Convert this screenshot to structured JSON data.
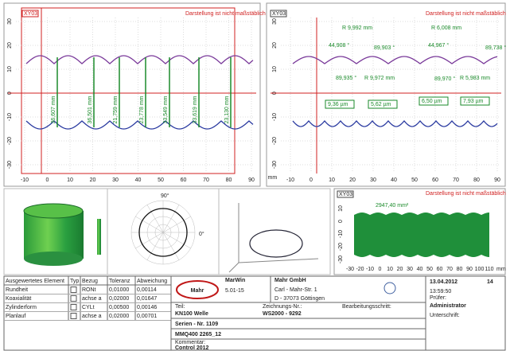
{
  "left_plot": {
    "tag": "XY03",
    "note": "Darstellung ist nicht maßstäblich",
    "xticks": [
      -10,
      0,
      10,
      20,
      30,
      40,
      50,
      60,
      70,
      80,
      90
    ],
    "xunit": "mm",
    "yticks": [
      30,
      20,
      10,
      0,
      -10,
      -20,
      -30
    ],
    "dimensions": [
      "36,607 mm",
      "36,501 mm",
      "21,759 mm",
      "23,778 mm",
      "33,549 mm",
      "33,619 mm",
      "23,130 mm"
    ]
  },
  "right_plot": {
    "tag": "XY03",
    "note": "Darstellung ist nicht maßstäblich",
    "xticks": [
      -10,
      0,
      10,
      20,
      30,
      40,
      50,
      60,
      70,
      80,
      90
    ],
    "xunit": "mm",
    "yticks": [
      30,
      20,
      10,
      0,
      -10,
      -20,
      -30
    ],
    "annotations": [
      "R 9,992 mm",
      "44,908 °",
      "89,935 °",
      "R 9,972 mm",
      "R 6,008 mm",
      "44,967 °",
      "89,903 °",
      "89,970 °",
      "R 5,983 mm",
      "89,738 °",
      "9,36 µm",
      "5,62 µm",
      "6,50 µm",
      "7,93 µm"
    ]
  },
  "panels": {
    "polar_top": "90°",
    "polar_right": "0°",
    "area_tag": "XY03",
    "area_note": "Darstellung ist nicht maßstäblich",
    "area_value": "2947,40 mm²",
    "area_xticks": [
      -30,
      -20,
      -10,
      0,
      10,
      20,
      30,
      40,
      50,
      60,
      70,
      80,
      90,
      100,
      110
    ],
    "area_xunit": "mm",
    "area_yticks": [
      10,
      0,
      -10,
      -20,
      -30
    ]
  },
  "table": {
    "header": [
      "Ausgewertetes Element",
      "Typ",
      "Bezug",
      "Toleranz",
      "Abweichung"
    ],
    "rows": [
      [
        "Rundheit",
        "RONt",
        "0,01000",
        "0,00114"
      ],
      [
        "Koaxialität",
        "achse a",
        "0,02000",
        "0,01647"
      ],
      [
        "Zylinderform",
        "CYLt",
        "0,00500",
        "0,00146"
      ],
      [
        "Planlauf",
        "achse a",
        "0,02000",
        "0,00701"
      ]
    ]
  },
  "title_block": {
    "logo": "Mahr",
    "software": "MarWin",
    "version": "5.01-15",
    "company": "Mahr GmbH",
    "street": "Carl - Mahr-Str. 1",
    "city": "D - 37073 Göttingen",
    "date": "13.04.2012",
    "page": "14",
    "time": "13:59:50",
    "examiner_label": "Prüfer:",
    "examiner": "Administrator",
    "signature_label": "Unterschrift:",
    "part_label": "Teil:",
    "part": "KN100 Welle",
    "drawing_label": "Zeichnungs-Nr.:",
    "drawing": "WS2000 - 9292",
    "step_label": "Bearbeitungsschritt:",
    "serial": "Serien - Nr. 1109",
    "machine": "MMQ400 2265_12",
    "comment_label": "Kommentar:",
    "comment": "Control 2012"
  }
}
